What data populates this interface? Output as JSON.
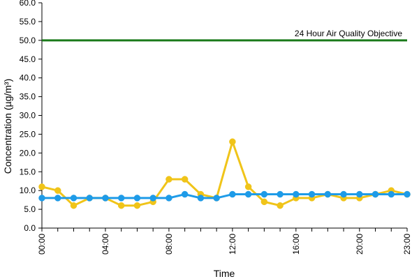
{
  "chart_data": {
    "type": "line",
    "xlabel": "Time",
    "ylabel": "Concentration (µg/m³)",
    "x": [
      "00:00",
      "01:00",
      "02:00",
      "03:00",
      "04:00",
      "05:00",
      "06:00",
      "07:00",
      "08:00",
      "09:00",
      "10:00",
      "11:00",
      "12:00",
      "13:00",
      "14:00",
      "15:00",
      "16:00",
      "17:00",
      "18:00",
      "19:00",
      "20:00",
      "21:00",
      "22:00",
      "23:00"
    ],
    "x_tick_labels": [
      "00:00",
      "04:00",
      "08:00",
      "12:00",
      "16:00",
      "20:00",
      "23:00"
    ],
    "y_tick_labels": [
      "0.0",
      "5.0",
      "10.0",
      "15.0",
      "20.0",
      "25.0",
      "30.0",
      "35.0",
      "40.0",
      "45.0",
      "50.0",
      "55.0",
      "60.0"
    ],
    "ylim": [
      0,
      60
    ],
    "xlim": [
      0,
      23
    ],
    "grid": false,
    "legend": "none",
    "series": [
      {
        "color": "#f0c419",
        "values": [
          11,
          10,
          6,
          8,
          8,
          6,
          6,
          7,
          13,
          13,
          9,
          8,
          23,
          11,
          7,
          6,
          8,
          8,
          9,
          8,
          8,
          9,
          10,
          9
        ]
      },
      {
        "color": "#1e9be8",
        "values": [
          8,
          8,
          8,
          8,
          8,
          8,
          8,
          8,
          8,
          9,
          8,
          8,
          9,
          9,
          9,
          9,
          9,
          9,
          9,
          9,
          9,
          9,
          9,
          9
        ]
      }
    ],
    "reference_lines": [
      {
        "value": 50,
        "label": "24 Hour Air Quality Objective",
        "color": "#1a7a1a"
      }
    ]
  }
}
